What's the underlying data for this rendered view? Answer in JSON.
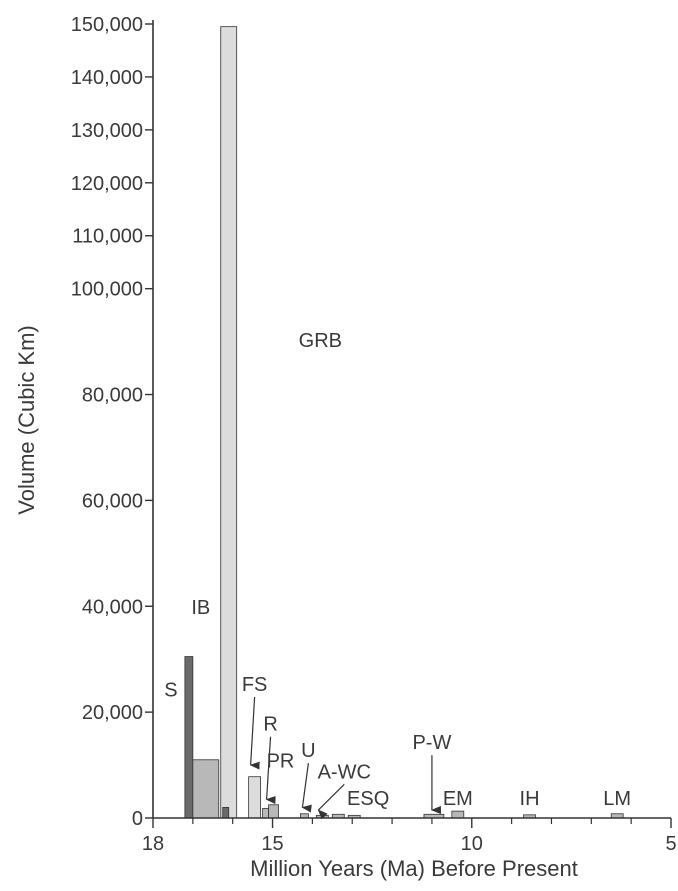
{
  "chart_data": {
    "type": "bar",
    "xlabel": "Million Years (Ma) Before Present",
    "ylabel": "Volume (Cubic Km)",
    "xlim": [
      18,
      5
    ],
    "x_reversed": true,
    "ylim": [
      0,
      150000
    ],
    "grid": false,
    "legend": "none",
    "y_ticks": [
      {
        "value": 0,
        "label": "0"
      },
      {
        "value": 20000,
        "label": "20,000"
      },
      {
        "value": 40000,
        "label": "40,000"
      },
      {
        "value": 60000,
        "label": "60,000"
      },
      {
        "value": 80000,
        "label": "80,000"
      },
      {
        "value": 100000,
        "label": "100,000"
      },
      {
        "value": 110000,
        "label": "110,000"
      },
      {
        "value": 120000,
        "label": "120,000"
      },
      {
        "value": 130000,
        "label": "130,000"
      },
      {
        "value": 140000,
        "label": "140,000"
      },
      {
        "value": 150000,
        "label": "150,000"
      }
    ],
    "x_ticks": [
      {
        "value": 18,
        "label": "18"
      },
      {
        "value": 15,
        "label": "15"
      },
      {
        "value": 10,
        "label": "10"
      },
      {
        "value": 5,
        "label": "5"
      }
    ],
    "x_minor_ticks": [
      17,
      16,
      14,
      13,
      12,
      11,
      9,
      8,
      7,
      6
    ],
    "colors": {
      "dark": "#6b6b6b",
      "medium": "#b8b8b8",
      "light": "#dcdcdc",
      "outline": "#333333",
      "axis": "#333333"
    },
    "bars": [
      {
        "name": "S",
        "x_start": 17.2,
        "x_end": 17.0,
        "value": 30500,
        "shade": "dark"
      },
      {
        "name": "IB",
        "x_start": 17.0,
        "x_end": 16.35,
        "value": 11000,
        "shade": "medium"
      },
      {
        "name": "GRB",
        "x_start": 16.3,
        "x_end": 15.9,
        "value": 149500,
        "shade": "light"
      },
      {
        "name": "GRB",
        "x_start": 16.25,
        "x_end": 16.1,
        "value": 2000,
        "shade": "dark"
      },
      {
        "name": "FS",
        "x_start": 15.6,
        "x_end": 15.3,
        "value": 7800,
        "shade": "light"
      },
      {
        "name": "R",
        "x_start": 15.25,
        "x_end": 15.1,
        "value": 1800,
        "shade": "medium"
      },
      {
        "name": "PR",
        "x_start": 15.1,
        "x_end": 14.85,
        "value": 2500,
        "shade": "medium"
      },
      {
        "name": "U",
        "x_start": 14.3,
        "x_end": 14.1,
        "value": 800,
        "shade": "medium"
      },
      {
        "name": "A-WC",
        "x_start": 13.9,
        "x_end": 13.6,
        "value": 500,
        "shade": "medium"
      },
      {
        "name": "A-WC",
        "x_start": 13.5,
        "x_end": 13.2,
        "value": 700,
        "shade": "medium"
      },
      {
        "name": "ESQ",
        "x_start": 13.1,
        "x_end": 12.8,
        "value": 500,
        "shade": "medium"
      },
      {
        "name": "P-W",
        "x_start": 11.2,
        "x_end": 10.7,
        "value": 700,
        "shade": "medium"
      },
      {
        "name": "EM",
        "x_start": 10.5,
        "x_end": 10.2,
        "value": 1300,
        "shade": "medium"
      },
      {
        "name": "IH",
        "x_start": 8.7,
        "x_end": 8.4,
        "value": 600,
        "shade": "medium"
      },
      {
        "name": "LM",
        "x_start": 6.5,
        "x_end": 6.2,
        "value": 800,
        "shade": "medium"
      }
    ],
    "annotations": [
      {
        "label": "S",
        "x": 17.55,
        "y": 23000
      },
      {
        "label": "IB",
        "x": 16.8,
        "y": 38500
      },
      {
        "label": "GRB",
        "x": 13.8,
        "y": 89000
      },
      {
        "label": "FS",
        "x": 15.45,
        "y": 24000,
        "arrow_to": [
          15.55,
          10000
        ]
      },
      {
        "label": "R",
        "x": 15.05,
        "y": 16500,
        "arrow_to": [
          15.15,
          3500
        ]
      },
      {
        "label": "PR",
        "x": 14.8,
        "y": 9500
      },
      {
        "label": "U",
        "x": 14.1,
        "y": 11500,
        "arrow_to": [
          14.25,
          2000
        ]
      },
      {
        "label": "A-WC",
        "x": 13.2,
        "y": 7500,
        "arrow_to": [
          13.85,
          1500
        ]
      },
      {
        "label": "ESQ",
        "x": 12.6,
        "y": 2500
      },
      {
        "label": "P-W",
        "x": 11.0,
        "y": 13000,
        "arrow_to": [
          11.0,
          1500
        ]
      },
      {
        "label": "EM",
        "x": 10.35,
        "y": 2500
      },
      {
        "label": "IH",
        "x": 8.55,
        "y": 2500
      },
      {
        "label": "LM",
        "x": 6.35,
        "y": 2500
      }
    ]
  }
}
